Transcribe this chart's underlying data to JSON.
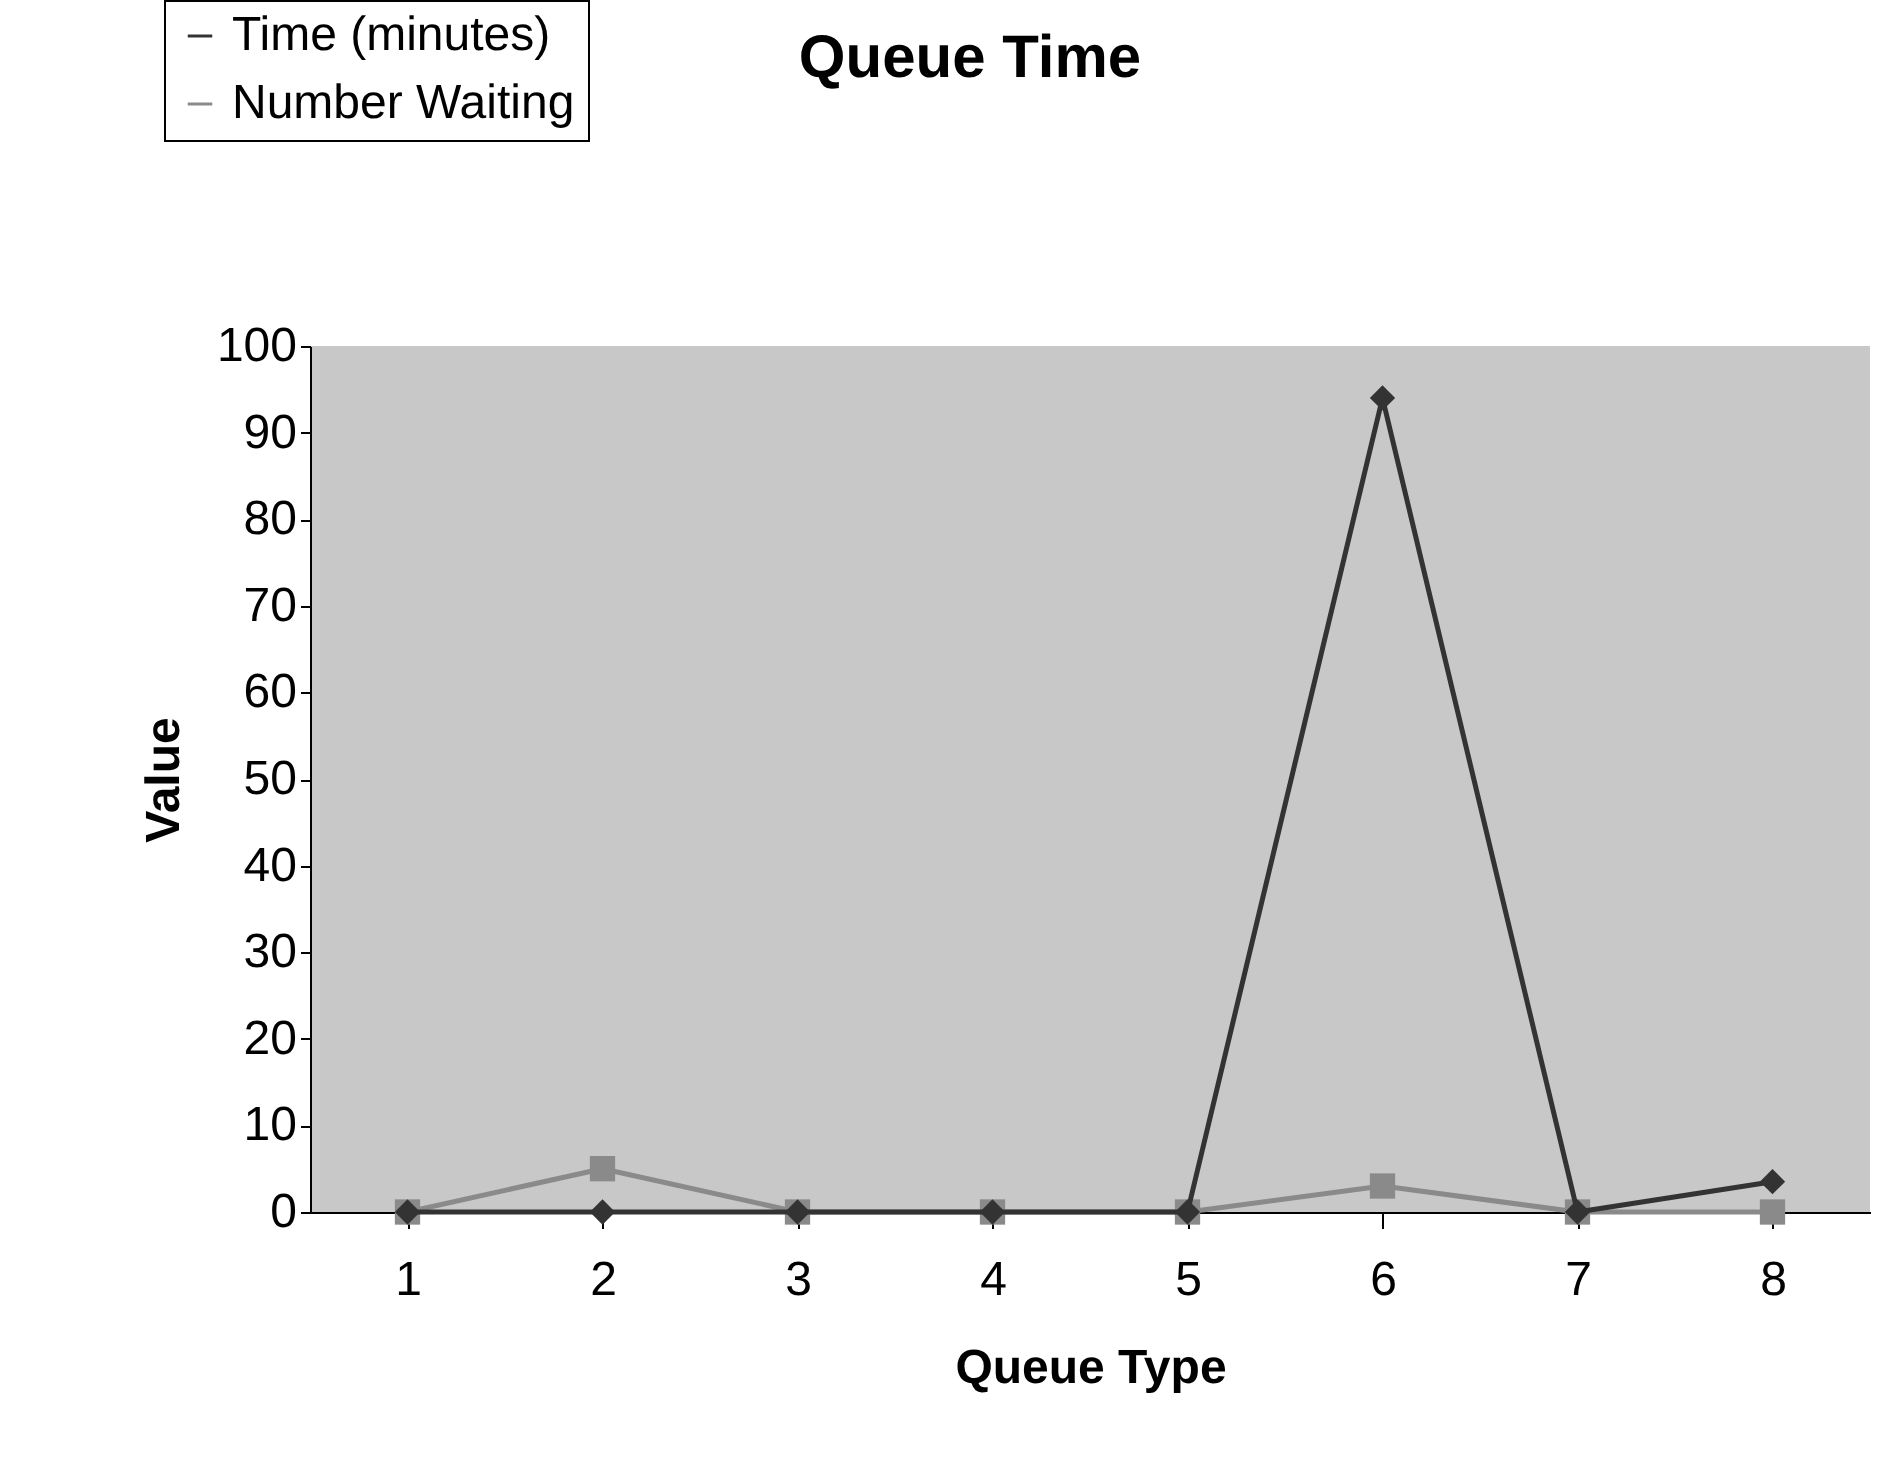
{
  "chart_data": {
    "type": "line",
    "title": "Queue Time",
    "xlabel": "Queue Type",
    "ylabel": "Value",
    "categories": [
      "1",
      "2",
      "3",
      "4",
      "5",
      "6",
      "7",
      "8"
    ],
    "series": [
      {
        "name": "Time (minutes)",
        "color": "#333333",
        "marker": "diamond",
        "values": [
          0,
          0,
          0,
          0,
          0,
          94,
          0,
          3.5
        ]
      },
      {
        "name": "Number Waiting",
        "color": "#8a8a8a",
        "marker": "square",
        "values": [
          0,
          5,
          0,
          0,
          0,
          3,
          0,
          0
        ]
      }
    ],
    "ylim": [
      0,
      100
    ],
    "yticks": [
      0,
      10,
      20,
      30,
      40,
      50,
      60,
      70,
      80,
      90,
      100
    ],
    "grid": false,
    "legend": "top left"
  }
}
